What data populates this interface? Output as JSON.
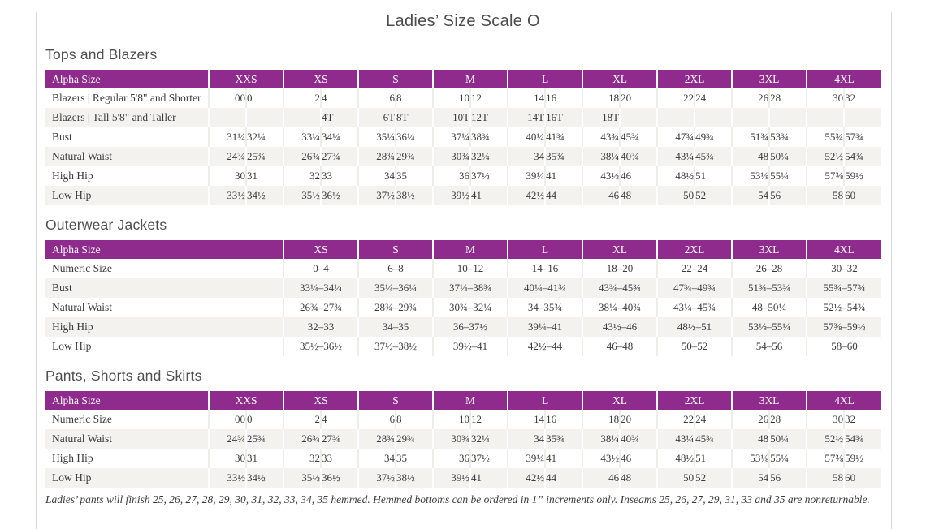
{
  "page_title": "Ladies’ Size Scale O",
  "accent_color": "#8e2b8c",
  "row_alt_color": "#f4f2ef",
  "sections": [
    {
      "title": "Tops and Blazers",
      "header_label": "Alpha Size",
      "paired": true,
      "columns": [
        "XXS",
        "XS",
        "S",
        "M",
        "L",
        "XL",
        "2XL",
        "3XL",
        "4XL"
      ],
      "rows": [
        {
          "label": "Blazers | Regular 5'8\" and Shorter",
          "values": [
            [
              "00",
              "0"
            ],
            [
              "2",
              "4"
            ],
            [
              "6",
              "8"
            ],
            [
              "10",
              "12"
            ],
            [
              "14",
              "16"
            ],
            [
              "18",
              "20"
            ],
            [
              "22",
              "24"
            ],
            [
              "26",
              "28"
            ],
            [
              "30",
              "32"
            ]
          ]
        },
        {
          "label": "Blazers | Tall 5'8\" and Taller",
          "values": [
            [
              "",
              ""
            ],
            [
              "",
              "4T"
            ],
            [
              "6T",
              "8T"
            ],
            [
              "10T",
              "12T"
            ],
            [
              "14T",
              "16T"
            ],
            [
              "18T",
              ""
            ],
            [
              "",
              ""
            ],
            [
              "",
              ""
            ],
            [
              "",
              ""
            ]
          ]
        },
        {
          "label": "Bust",
          "values": [
            [
              "31¼",
              "32¼"
            ],
            [
              "33¼",
              "34¼"
            ],
            [
              "35¼",
              "36¼"
            ],
            [
              "37¼",
              "38¾"
            ],
            [
              "40¼",
              "41¾"
            ],
            [
              "43¾",
              "45¾"
            ],
            [
              "47¾",
              "49¾"
            ],
            [
              "51¾",
              "53¾"
            ],
            [
              "55¾",
              "57¾"
            ]
          ]
        },
        {
          "label": "Natural Waist",
          "values": [
            [
              "24¾",
              "25¾"
            ],
            [
              "26¾",
              "27¾"
            ],
            [
              "28¾",
              "29¾"
            ],
            [
              "30¾",
              "32¼"
            ],
            [
              "34",
              "35¾"
            ],
            [
              "38¼",
              "40¾"
            ],
            [
              "43¼",
              "45¾"
            ],
            [
              "48",
              "50¼"
            ],
            [
              "52½",
              "54¾"
            ]
          ]
        },
        {
          "label": "High Hip",
          "values": [
            [
              "30",
              "31"
            ],
            [
              "32",
              "33"
            ],
            [
              "34",
              "35"
            ],
            [
              "36",
              "37½"
            ],
            [
              "39¼",
              "41"
            ],
            [
              "43½",
              "46"
            ],
            [
              "48½",
              "51"
            ],
            [
              "53⅛",
              "55¼"
            ],
            [
              "57⅜",
              "59½"
            ]
          ]
        },
        {
          "label": "Low Hip",
          "values": [
            [
              "33½",
              "34½"
            ],
            [
              "35½",
              "36½"
            ],
            [
              "37½",
              "38½"
            ],
            [
              "39½",
              "41"
            ],
            [
              "42½",
              "44"
            ],
            [
              "46",
              "48"
            ],
            [
              "50",
              "52"
            ],
            [
              "54",
              "56"
            ],
            [
              "58",
              "60"
            ]
          ]
        }
      ]
    },
    {
      "title": "Outerwear Jackets",
      "header_label": "Alpha Size",
      "paired": false,
      "columns": [
        "XS",
        "S",
        "M",
        "L",
        "XL",
        "2XL",
        "3XL",
        "4XL"
      ],
      "rows": [
        {
          "label": "Numeric Size",
          "values": [
            "0–4",
            "6–8",
            "10–12",
            "14–16",
            "18–20",
            "22–24",
            "26–28",
            "30–32"
          ]
        },
        {
          "label": "Bust",
          "values": [
            "33¼–34¼",
            "35¼–36¼",
            "37¼–38¾",
            "40¼–41¾",
            "43¾–45¾",
            "47¾–49¾",
            "51¾–53¾",
            "55¾–57¾"
          ]
        },
        {
          "label": "Natural Waist",
          "values": [
            "26¾–27¾",
            "28¾–29¾",
            "30¾–32¼",
            "34–35¾",
            "38¼–40¾",
            "43¼–45¾",
            "48–50¼",
            "52½–54¾"
          ]
        },
        {
          "label": "High Hip",
          "values": [
            "32–33",
            "34–35",
            "36–37½",
            "39¼–41",
            "43½–46",
            "48½–51",
            "53⅛–55¼",
            "57⅜–59½"
          ]
        },
        {
          "label": "Low Hip",
          "values": [
            "35½–36½",
            "37½–38½",
            "39½–41",
            "42½–44",
            "46–48",
            "50–52",
            "54–56",
            "58–60"
          ]
        }
      ]
    },
    {
      "title": "Pants, Shorts and Skirts",
      "header_label": "Alpha Size",
      "paired": true,
      "columns": [
        "XXS",
        "XS",
        "S",
        "M",
        "L",
        "XL",
        "2XL",
        "3XL",
        "4XL"
      ],
      "rows": [
        {
          "label": "Numeric Size",
          "values": [
            [
              "00",
              "0"
            ],
            [
              "2",
              "4"
            ],
            [
              "6",
              "8"
            ],
            [
              "10",
              "12"
            ],
            [
              "14",
              "16"
            ],
            [
              "18",
              "20"
            ],
            [
              "22",
              "24"
            ],
            [
              "26",
              "28"
            ],
            [
              "30",
              "32"
            ]
          ]
        },
        {
          "label": "Natural Waist",
          "values": [
            [
              "24¾",
              "25¾"
            ],
            [
              "26¾",
              "27¾"
            ],
            [
              "28¾",
              "29¾"
            ],
            [
              "30¾",
              "32¼"
            ],
            [
              "34",
              "35¾"
            ],
            [
              "38¼",
              "40¾"
            ],
            [
              "43¼",
              "45¾"
            ],
            [
              "48",
              "50¼"
            ],
            [
              "52½",
              "54¾"
            ]
          ]
        },
        {
          "label": "High Hip",
          "values": [
            [
              "30",
              "31"
            ],
            [
              "32",
              "33"
            ],
            [
              "34",
              "35"
            ],
            [
              "36",
              "37½"
            ],
            [
              "39¼",
              "41"
            ],
            [
              "43½",
              "46"
            ],
            [
              "48½",
              "51"
            ],
            [
              "53⅛",
              "55¼"
            ],
            [
              "57⅜",
              "59½"
            ]
          ]
        },
        {
          "label": "Low Hip",
          "values": [
            [
              "33½",
              "34½"
            ],
            [
              "35½",
              "36½"
            ],
            [
              "37½",
              "38½"
            ],
            [
              "39½",
              "41"
            ],
            [
              "42½",
              "44"
            ],
            [
              "46",
              "48"
            ],
            [
              "50",
              "52"
            ],
            [
              "54",
              "56"
            ],
            [
              "58",
              "60"
            ]
          ]
        }
      ]
    }
  ],
  "footnote": "Ladies’ pants will finish 25, 26, 27, 28, 29, 30, 31, 32, 33, 34, 35 hemmed. Hemmed bottoms can be ordered in 1” increments only. Inseams 25, 26, 27, 29, 31, 33 and 35 are nonreturnable."
}
